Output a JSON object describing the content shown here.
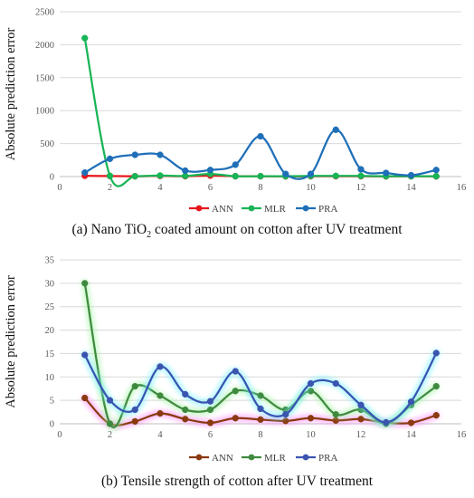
{
  "chart_data": [
    {
      "type": "line",
      "caption_prefix": "(a) Nano TiO",
      "caption_subscript": "2",
      "caption_suffix": " coated amount on cotton after UV treatment",
      "ylabel": "Absolute prediction error",
      "xlabel": "",
      "xlim": [
        0,
        16
      ],
      "ylim": [
        0,
        2500
      ],
      "xticks": [
        0,
        2,
        4,
        6,
        8,
        10,
        12,
        14,
        16
      ],
      "yticks": [
        0,
        500,
        1000,
        1500,
        2000,
        2500
      ],
      "grid": "horizontal",
      "legend_position": "bottom",
      "smooth": true,
      "series": [
        {
          "name": "ANN",
          "color": "#e8161c",
          "x": [
            1,
            2,
            3,
            4,
            5,
            6,
            7,
            8,
            9,
            10,
            11,
            12,
            13,
            14,
            15
          ],
          "y": [
            12,
            8,
            5,
            10,
            5,
            15,
            5,
            5,
            3,
            5,
            5,
            5,
            3,
            5,
            3
          ]
        },
        {
          "name": "MLR",
          "color": "#18b556",
          "x": [
            1,
            2,
            3,
            4,
            5,
            6,
            7,
            8,
            9,
            10,
            11,
            12,
            13,
            14,
            15
          ],
          "y": [
            2100,
            10,
            5,
            15,
            10,
            40,
            5,
            5,
            5,
            10,
            10,
            10,
            5,
            5,
            5
          ]
        },
        {
          "name": "PRA",
          "color": "#1f6fb8",
          "x": [
            1,
            2,
            3,
            4,
            5,
            6,
            7,
            8,
            9,
            10,
            11,
            12,
            13,
            14,
            15
          ],
          "y": [
            60,
            270,
            330,
            330,
            90,
            100,
            180,
            610,
            40,
            40,
            710,
            110,
            55,
            20,
            100
          ]
        }
      ]
    },
    {
      "type": "line",
      "caption": "(b) Tensile strength of cotton after UV treatment",
      "ylabel": "Absolute prediction error",
      "xlabel": "",
      "xlim": [
        0,
        16
      ],
      "ylim": [
        0,
        35
      ],
      "xticks": [
        0,
        2,
        4,
        6,
        8,
        10,
        12,
        14,
        16
      ],
      "yticks": [
        0,
        5,
        10,
        15,
        20,
        25,
        30,
        35
      ],
      "grid": "horizontal",
      "legend_position": "bottom",
      "smooth": true,
      "glow": true,
      "series": [
        {
          "name": "ANN",
          "color": "#8b3a0f",
          "glow": "#ff80ff",
          "x": [
            1,
            2,
            3,
            4,
            5,
            6,
            7,
            8,
            9,
            10,
            11,
            12,
            13,
            14,
            15
          ],
          "y": [
            5.5,
            0,
            0.5,
            2.2,
            1.0,
            0.2,
            1.2,
            0.9,
            0.6,
            1.2,
            0.7,
            1.0,
            0.2,
            0.2,
            1.8
          ]
        },
        {
          "name": "MLR",
          "color": "#3f8a3f",
          "glow": "#9ff59f",
          "x": [
            1,
            2,
            3,
            4,
            5,
            6,
            7,
            8,
            9,
            10,
            11,
            12,
            13,
            14,
            15
          ],
          "y": [
            30,
            0,
            8,
            6,
            3,
            3,
            7,
            6,
            3,
            7,
            2,
            3,
            0,
            4,
            8
          ]
        },
        {
          "name": "PRA",
          "color": "#3a54b0",
          "glow": "#6ff0ff",
          "x": [
            1,
            2,
            3,
            4,
            5,
            6,
            7,
            8,
            9,
            10,
            11,
            12,
            13,
            14,
            15
          ],
          "y": [
            14.7,
            5,
            3,
            12.2,
            6.3,
            4.8,
            11.2,
            3.2,
            2,
            8.6,
            8.6,
            4,
            0.3,
            4.7,
            15.1
          ]
        }
      ]
    }
  ]
}
